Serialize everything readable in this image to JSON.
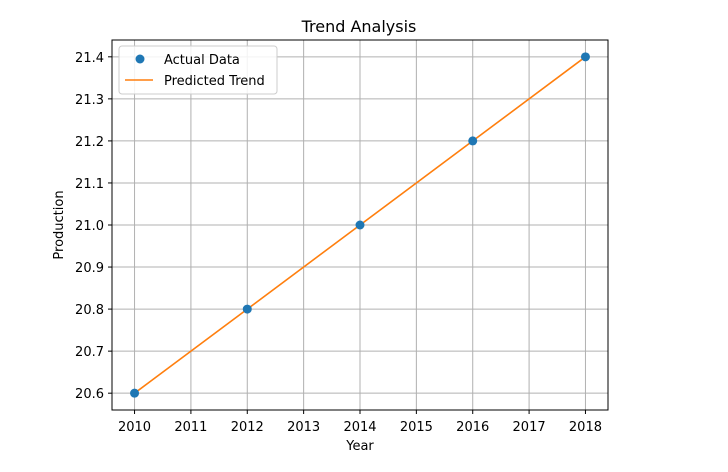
{
  "chart_data": {
    "type": "scatter+line",
    "title": "Trend Analysis",
    "xlabel": "Year",
    "ylabel": "Production",
    "xlim": [
      2009.6,
      2018.4
    ],
    "ylim": [
      20.56,
      21.44
    ],
    "xticks": [
      2010,
      2011,
      2012,
      2013,
      2014,
      2015,
      2016,
      2017,
      2018
    ],
    "yticks": [
      20.6,
      20.7,
      20.8,
      20.9,
      21.0,
      21.1,
      21.2,
      21.3,
      21.4
    ],
    "grid": true,
    "legend_position": "upper-left",
    "series": [
      {
        "name": "Actual Data",
        "kind": "scatter",
        "color": "#1f77b4",
        "x": [
          2010,
          2012,
          2014,
          2016,
          2018
        ],
        "y": [
          20.6,
          20.8,
          21.0,
          21.2,
          21.4
        ]
      },
      {
        "name": "Predicted Trend",
        "kind": "line",
        "color": "#ff7f0e",
        "x": [
          2010,
          2018
        ],
        "y": [
          20.6,
          21.4
        ]
      }
    ]
  }
}
